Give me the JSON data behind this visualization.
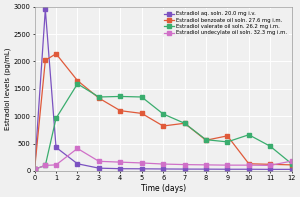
{
  "title": "",
  "xlabel": "Time (days)",
  "ylabel": "Estradiol levels (pg/mL)",
  "xlim": [
    0,
    12
  ],
  "ylim": [
    0,
    3000
  ],
  "yticks": [
    0,
    500,
    1000,
    1500,
    2000,
    2500,
    3000
  ],
  "xticks": [
    0,
    1,
    2,
    3,
    4,
    5,
    6,
    7,
    8,
    9,
    10,
    11,
    12
  ],
  "series": [
    {
      "label": "Estradiol aq. soln. 20.0 mg i.v.",
      "color": "#7b52c1",
      "marker": "s",
      "x": [
        0,
        0.5,
        1,
        2,
        3,
        4,
        5,
        6,
        7,
        8,
        9,
        10,
        11,
        12
      ],
      "y": [
        30,
        2950,
        430,
        130,
        50,
        40,
        38,
        35,
        33,
        32,
        30,
        30,
        28,
        28
      ]
    },
    {
      "label": "Estradiol benzoate oil soln. 27.6 mg i.m.",
      "color": "#e05a3a",
      "marker": "s",
      "x": [
        0,
        0.5,
        1,
        2,
        3,
        4,
        5,
        6,
        7,
        8,
        9,
        10,
        11,
        12
      ],
      "y": [
        30,
        2020,
        2140,
        1650,
        1330,
        1100,
        1050,
        820,
        870,
        560,
        640,
        130,
        120,
        110
      ]
    },
    {
      "label": "Estradiol valerate oil soln. 26.2 mg i.m.",
      "color": "#3aad6e",
      "marker": "s",
      "x": [
        0,
        0.5,
        1,
        2,
        3,
        4,
        5,
        6,
        7,
        8,
        9,
        10,
        11,
        12
      ],
      "y": [
        30,
        100,
        960,
        1590,
        1350,
        1360,
        1350,
        1040,
        870,
        570,
        530,
        660,
        450,
        130
      ]
    },
    {
      "label": "Estradiol undecylate oil soln. 32.3 mg i.m.",
      "color": "#d070c8",
      "marker": "s",
      "x": [
        0,
        0.5,
        1,
        2,
        3,
        4,
        5,
        6,
        7,
        8,
        9,
        10,
        11,
        12
      ],
      "y": [
        30,
        100,
        110,
        410,
        175,
        160,
        145,
        125,
        115,
        110,
        105,
        105,
        100,
        180
      ]
    }
  ],
  "legend_loc": "upper right",
  "grid": true,
  "bg_color": "#f0f0f0",
  "grid_color": "#ffffff",
  "spine_color": "#999999"
}
